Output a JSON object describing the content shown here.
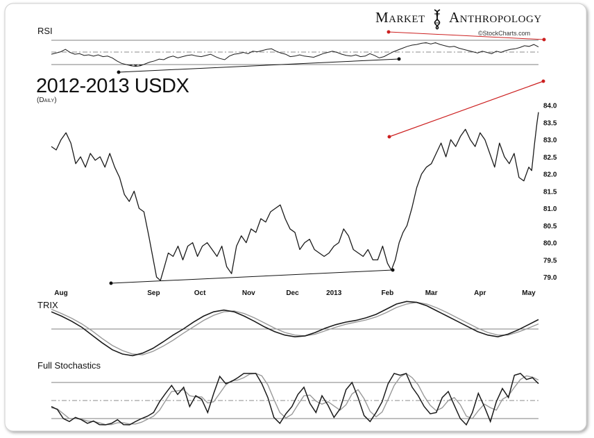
{
  "brand": {
    "left_word": "Market",
    "right_word": "Anthropology",
    "source": "©StockCharts.com"
  },
  "title": "2012-2013 USDX",
  "subtitle": "(Daily)",
  "panel_labels": {
    "rsi": "RSI",
    "trix": "TRIX",
    "stoch": "Full Stochastics"
  },
  "colors": {
    "price_line": "#1a1a1a",
    "signal_line": "#999999",
    "trendline_red": "#cc1f1f",
    "trendline_black": "#111111",
    "reference_line": "#444444"
  },
  "chart_data": {
    "type": "line",
    "title": "2012-2013 USDX",
    "subtitle": "(Daily)",
    "x_tick_labels": [
      "Aug",
      "Sep",
      "Oct",
      "Nov",
      "Dec",
      "2013",
      "Feb",
      "Mar",
      "Apr",
      "May"
    ],
    "ylim": [
      78.8,
      84.6
    ],
    "y_tick_labels": [
      "84.0",
      "83.5",
      "83.0",
      "82.5",
      "82.0",
      "81.5",
      "81.0",
      "80.5",
      "80.0",
      "79.5",
      "79.0"
    ],
    "y_ticks": [
      84.0,
      83.5,
      83.0,
      82.5,
      82.0,
      81.5,
      81.0,
      80.5,
      80.0,
      79.5,
      79.0
    ],
    "x_domain": [
      0,
      100
    ],
    "x_ticks": [
      2,
      21,
      30.5,
      40.5,
      49.5,
      58,
      69,
      78,
      88,
      98
    ],
    "price": [
      [
        0,
        82.8
      ],
      [
        1,
        82.7
      ],
      [
        2,
        83.0
      ],
      [
        3,
        83.2
      ],
      [
        4,
        82.9
      ],
      [
        5,
        82.3
      ],
      [
        6,
        82.5
      ],
      [
        7,
        82.2
      ],
      [
        8,
        82.6
      ],
      [
        9,
        82.4
      ],
      [
        10,
        82.5
      ],
      [
        11,
        82.2
      ],
      [
        12,
        82.6
      ],
      [
        13,
        82.2
      ],
      [
        14,
        81.9
      ],
      [
        15,
        81.4
      ],
      [
        16,
        81.2
      ],
      [
        17,
        81.5
      ],
      [
        18,
        81.0
      ],
      [
        19,
        80.9
      ],
      [
        20,
        80.2
      ],
      [
        20.8,
        79.6
      ],
      [
        21.6,
        79.0
      ],
      [
        22.4,
        78.9
      ],
      [
        23.2,
        79.3
      ],
      [
        24,
        79.7
      ],
      [
        25,
        79.6
      ],
      [
        26,
        79.9
      ],
      [
        27,
        79.5
      ],
      [
        28,
        79.9
      ],
      [
        29,
        80.0
      ],
      [
        30,
        79.6
      ],
      [
        31,
        79.9
      ],
      [
        32,
        80.0
      ],
      [
        33,
        79.8
      ],
      [
        34,
        79.6
      ],
      [
        35,
        79.9
      ],
      [
        36,
        79.3
      ],
      [
        37,
        79.1
      ],
      [
        38,
        79.9
      ],
      [
        39,
        80.2
      ],
      [
        40,
        80.0
      ],
      [
        41,
        80.4
      ],
      [
        42,
        80.3
      ],
      [
        43,
        80.7
      ],
      [
        44,
        80.6
      ],
      [
        45,
        80.9
      ],
      [
        46,
        81.0
      ],
      [
        47,
        81.1
      ],
      [
        48,
        80.7
      ],
      [
        49,
        80.4
      ],
      [
        50,
        80.3
      ],
      [
        51,
        79.8
      ],
      [
        52,
        80.0
      ],
      [
        53,
        80.1
      ],
      [
        54,
        79.8
      ],
      [
        55,
        79.7
      ],
      [
        56,
        79.6
      ],
      [
        57,
        79.7
      ],
      [
        58,
        79.9
      ],
      [
        59,
        80.0
      ],
      [
        60,
        80.4
      ],
      [
        61,
        80.2
      ],
      [
        62,
        79.8
      ],
      [
        63,
        79.7
      ],
      [
        64,
        79.6
      ],
      [
        65,
        79.8
      ],
      [
        66,
        79.5
      ],
      [
        67,
        79.5
      ],
      [
        68,
        79.9
      ],
      [
        69,
        79.4
      ],
      [
        69.8,
        79.2
      ],
      [
        70.6,
        79.5
      ],
      [
        71.4,
        80.0
      ],
      [
        72.2,
        80.3
      ],
      [
        73,
        80.5
      ],
      [
        74,
        81.0
      ],
      [
        75,
        81.6
      ],
      [
        76,
        82.0
      ],
      [
        77,
        82.2
      ],
      [
        78,
        82.3
      ],
      [
        79,
        82.6
      ],
      [
        80,
        82.9
      ],
      [
        81,
        82.5
      ],
      [
        82,
        83.0
      ],
      [
        83,
        82.8
      ],
      [
        84,
        83.1
      ],
      [
        85,
        83.3
      ],
      [
        86,
        83.0
      ],
      [
        87,
        82.8
      ],
      [
        88,
        83.2
      ],
      [
        89,
        83.0
      ],
      [
        90,
        82.6
      ],
      [
        91,
        82.2
      ],
      [
        92,
        82.9
      ],
      [
        93,
        82.5
      ],
      [
        94,
        82.3
      ],
      [
        95,
        82.6
      ],
      [
        96,
        81.9
      ],
      [
        97,
        81.8
      ],
      [
        98,
        82.2
      ],
      [
        98.6,
        82.1
      ],
      [
        99.2,
        82.9
      ],
      [
        99.7,
        83.5
      ],
      [
        100,
        83.8
      ]
    ],
    "rsi": {
      "ylim": [
        20,
        80
      ],
      "reference_levels": [
        70,
        50,
        30
      ],
      "values": [
        47,
        49,
        51,
        55,
        50,
        47,
        48,
        45,
        46,
        44,
        46,
        43,
        44,
        41,
        36,
        32,
        30,
        28,
        27,
        28,
        31,
        34,
        36,
        39,
        38,
        42,
        44,
        41,
        43,
        45,
        46,
        44,
        43,
        45,
        47,
        43,
        40,
        38,
        44,
        47,
        48,
        50,
        48,
        52,
        51,
        53,
        55,
        56,
        52,
        49,
        47,
        43,
        44,
        46,
        44,
        43,
        42,
        45,
        48,
        50,
        52,
        50,
        47,
        45,
        44,
        46,
        43,
        44,
        48,
        45,
        41,
        43,
        47,
        51,
        54,
        57,
        60,
        62,
        63,
        65,
        66,
        64,
        66,
        63,
        61,
        59,
        60,
        57,
        55,
        53,
        51,
        49,
        52,
        50,
        48,
        52,
        50,
        53,
        55,
        56,
        58,
        61,
        60,
        63,
        59
      ]
    },
    "trix": {
      "zero_level": 0,
      "trix": [
        0.4,
        0.3,
        0.18,
        0.04,
        -0.14,
        -0.32,
        -0.48,
        -0.58,
        -0.62,
        -0.56,
        -0.45,
        -0.3,
        -0.14,
        0.0,
        0.16,
        0.3,
        0.4,
        0.44,
        0.4,
        0.3,
        0.18,
        0.05,
        -0.06,
        -0.14,
        -0.18,
        -0.16,
        -0.08,
        0.02,
        0.1,
        0.16,
        0.2,
        0.26,
        0.34,
        0.46,
        0.58,
        0.64,
        0.62,
        0.54,
        0.42,
        0.3,
        0.18,
        0.06,
        -0.06,
        -0.14,
        -0.18,
        -0.12,
        -0.02,
        0.1,
        0.22
      ],
      "signal": [
        0.46,
        0.36,
        0.25,
        0.12,
        -0.04,
        -0.22,
        -0.38,
        -0.5,
        -0.58,
        -0.6,
        -0.52,
        -0.4,
        -0.26,
        -0.1,
        0.05,
        0.2,
        0.32,
        0.4,
        0.42,
        0.36,
        0.26,
        0.14,
        0.02,
        -0.08,
        -0.14,
        -0.16,
        -0.12,
        -0.04,
        0.04,
        0.11,
        0.16,
        0.21,
        0.28,
        0.38,
        0.5,
        0.58,
        0.62,
        0.58,
        0.49,
        0.38,
        0.26,
        0.14,
        0.02,
        -0.08,
        -0.14,
        -0.14,
        -0.07,
        0.02,
        0.12
      ]
    },
    "stochastics": {
      "ylim": [
        0,
        100
      ],
      "reference_levels": [
        80,
        50,
        20
      ],
      "k": [
        40,
        35,
        20,
        15,
        22,
        18,
        12,
        16,
        10,
        8,
        12,
        18,
        10,
        8,
        15,
        20,
        24,
        30,
        48,
        62,
        75,
        60,
        72,
        40,
        58,
        52,
        30,
        62,
        90,
        78,
        82,
        88,
        95,
        100,
        96,
        78,
        55,
        22,
        12,
        28,
        40,
        60,
        72,
        45,
        30,
        58,
        42,
        22,
        36,
        68,
        80,
        55,
        25,
        15,
        30,
        48,
        78,
        98,
        92,
        100,
        72,
        58,
        40,
        28,
        30,
        55,
        65,
        42,
        20,
        8,
        30,
        62,
        40,
        15,
        48,
        70,
        55,
        92,
        96,
        85,
        88,
        78
      ],
      "d": [
        38,
        36,
        28,
        20,
        20,
        19,
        16,
        15,
        13,
        10,
        10,
        13,
        13,
        11,
        11,
        14,
        19,
        24,
        34,
        50,
        65,
        66,
        68,
        58,
        56,
        56,
        46,
        48,
        62,
        76,
        83,
        84,
        88,
        94,
        97,
        91,
        76,
        52,
        30,
        21,
        27,
        43,
        58,
        59,
        49,
        44,
        48,
        41,
        34,
        43,
        61,
        68,
        53,
        32,
        23,
        31,
        52,
        75,
        89,
        96,
        88,
        76,
        57,
        42,
        33,
        38,
        50,
        55,
        43,
        24,
        20,
        33,
        44,
        38,
        34,
        52,
        58,
        72,
        85,
        91,
        89,
        84
      ]
    }
  }
}
